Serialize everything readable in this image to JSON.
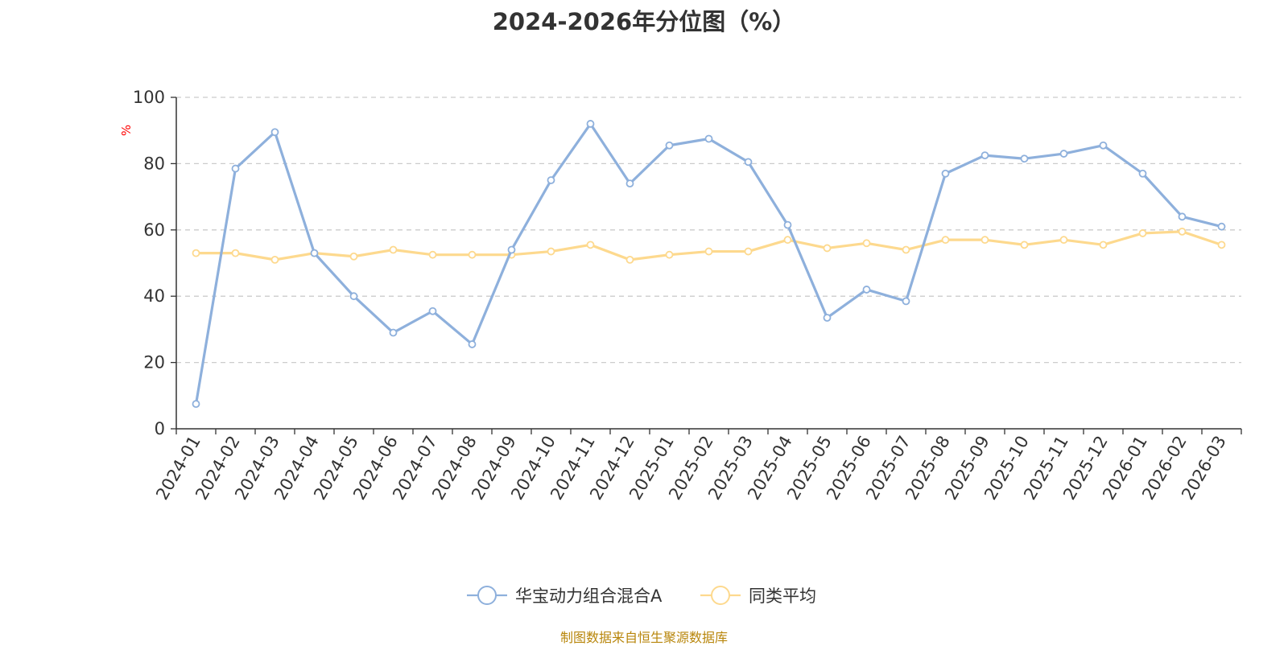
{
  "chart_data": {
    "type": "line",
    "title": "2024-2026年分位图（%）",
    "y_unit": "%",
    "ylim": [
      0,
      100
    ],
    "y_ticks": [
      0,
      20,
      40,
      60,
      80,
      100
    ],
    "grid": true,
    "legend_position": "bottom",
    "categories": [
      "2024-01",
      "2024-02",
      "2024-03",
      "2024-04",
      "2024-05",
      "2024-06",
      "2024-07",
      "2024-08",
      "2024-09",
      "2024-10",
      "2024-11",
      "2024-12",
      "2025-01",
      "2025-02",
      "2025-03",
      "2025-04",
      "2025-05",
      "2025-06",
      "2025-07",
      "2025-08",
      "2025-09",
      "2025-10",
      "2025-11",
      "2025-12",
      "2026-01",
      "2026-02",
      "2026-03"
    ],
    "series": [
      {
        "name": "华宝动力组合混合A",
        "color": "#8eb0dc",
        "values": [
          7.5,
          78.5,
          89.5,
          53,
          40,
          29,
          35.5,
          25.5,
          54,
          75,
          92,
          74,
          85.5,
          87.5,
          80.5,
          61.5,
          33.5,
          42,
          38.5,
          77,
          82.5,
          81.5,
          83,
          85.5,
          77,
          64,
          61
        ]
      },
      {
        "name": "同类平均",
        "color": "#fdd98e",
        "values": [
          53,
          53,
          51,
          53,
          52,
          54,
          52.5,
          52.5,
          52.5,
          53.5,
          55.5,
          51,
          52.5,
          53.5,
          53.5,
          57,
          54.5,
          56,
          54,
          57,
          57,
          55.5,
          57,
          55.5,
          59,
          59.5,
          55.5
        ]
      }
    ]
  },
  "source": "制图数据来自恒生聚源数据库"
}
